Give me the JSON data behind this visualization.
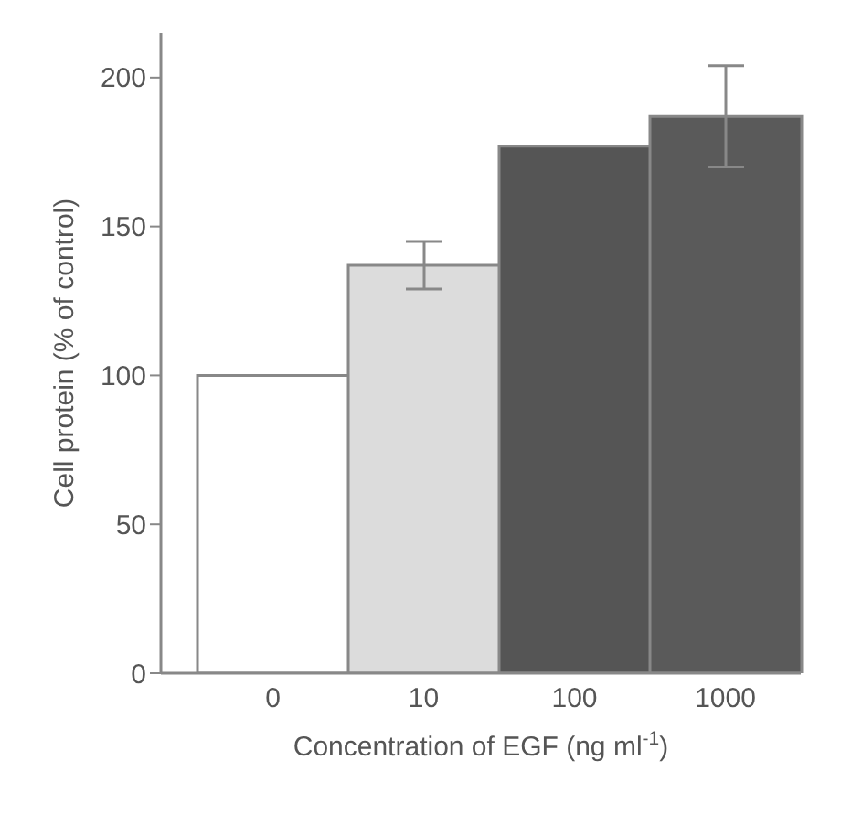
{
  "chart_data": {
    "type": "bar",
    "xlabel": "Concentration of EGF (ng ml$^{-1}$)",
    "ylabel": "Cell protein (% of control)",
    "categories": [
      "0",
      "10",
      "100",
      "1000"
    ],
    "values": [
      100,
      137,
      177,
      187
    ],
    "colors": [
      "#ffffff",
      "#dcdcdc",
      "#555555",
      "#5a5a5a"
    ],
    "errors": [
      null,
      8,
      null,
      17
    ],
    "ylim": [
      0,
      215
    ],
    "yticks": [
      0,
      50,
      100,
      150,
      200
    ],
    "grid": false
  }
}
